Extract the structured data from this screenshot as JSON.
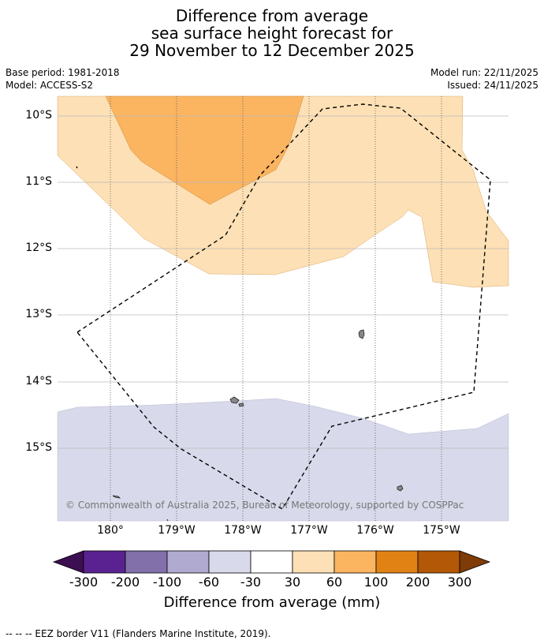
{
  "title": {
    "line1": "Difference from average",
    "line2": "sea surface height forecast for",
    "line3": "29 November to 12 December 2025"
  },
  "meta": {
    "base_period": "Base period: 1981-2018",
    "model": "Model: ACCESS-S2",
    "model_run": "Model run: 22/11/2025",
    "issued": "Issued: 24/11/2025"
  },
  "map": {
    "lat_labels": [
      "10°S",
      "11°S",
      "12°S",
      "13°S",
      "14°S",
      "15°S"
    ],
    "lon_labels": [
      "180°",
      "179°W",
      "178°W",
      "177°W",
      "176°W",
      "175°W"
    ],
    "copyright": "© Commonwealth of Australia 2025, Bureau of Meteorology, supported by COSPPac",
    "colors": {
      "c30_60": "#fde0b5",
      "c60_100": "#fbb460",
      "cm60_m30": "#d8d9ea",
      "land": "#888888",
      "eez": "#000000"
    }
  },
  "colorbar": {
    "labels": [
      "-300",
      "-200",
      "-100",
      "-60",
      "-30",
      "30",
      "60",
      "100",
      "200",
      "300"
    ],
    "colors": [
      "#3c0e52",
      "#5a2290",
      "#8170aa",
      "#b0a9d0",
      "#d8d9ea",
      "#ffffff",
      "#fde0b5",
      "#fbb460",
      "#e08214",
      "#b35806",
      "#7f3b08"
    ],
    "title": "Difference from average (mm)"
  },
  "footer": {
    "eez_legend": "--  --  -- EEZ border V11 (Flanders Marine Institute, 2019)."
  }
}
